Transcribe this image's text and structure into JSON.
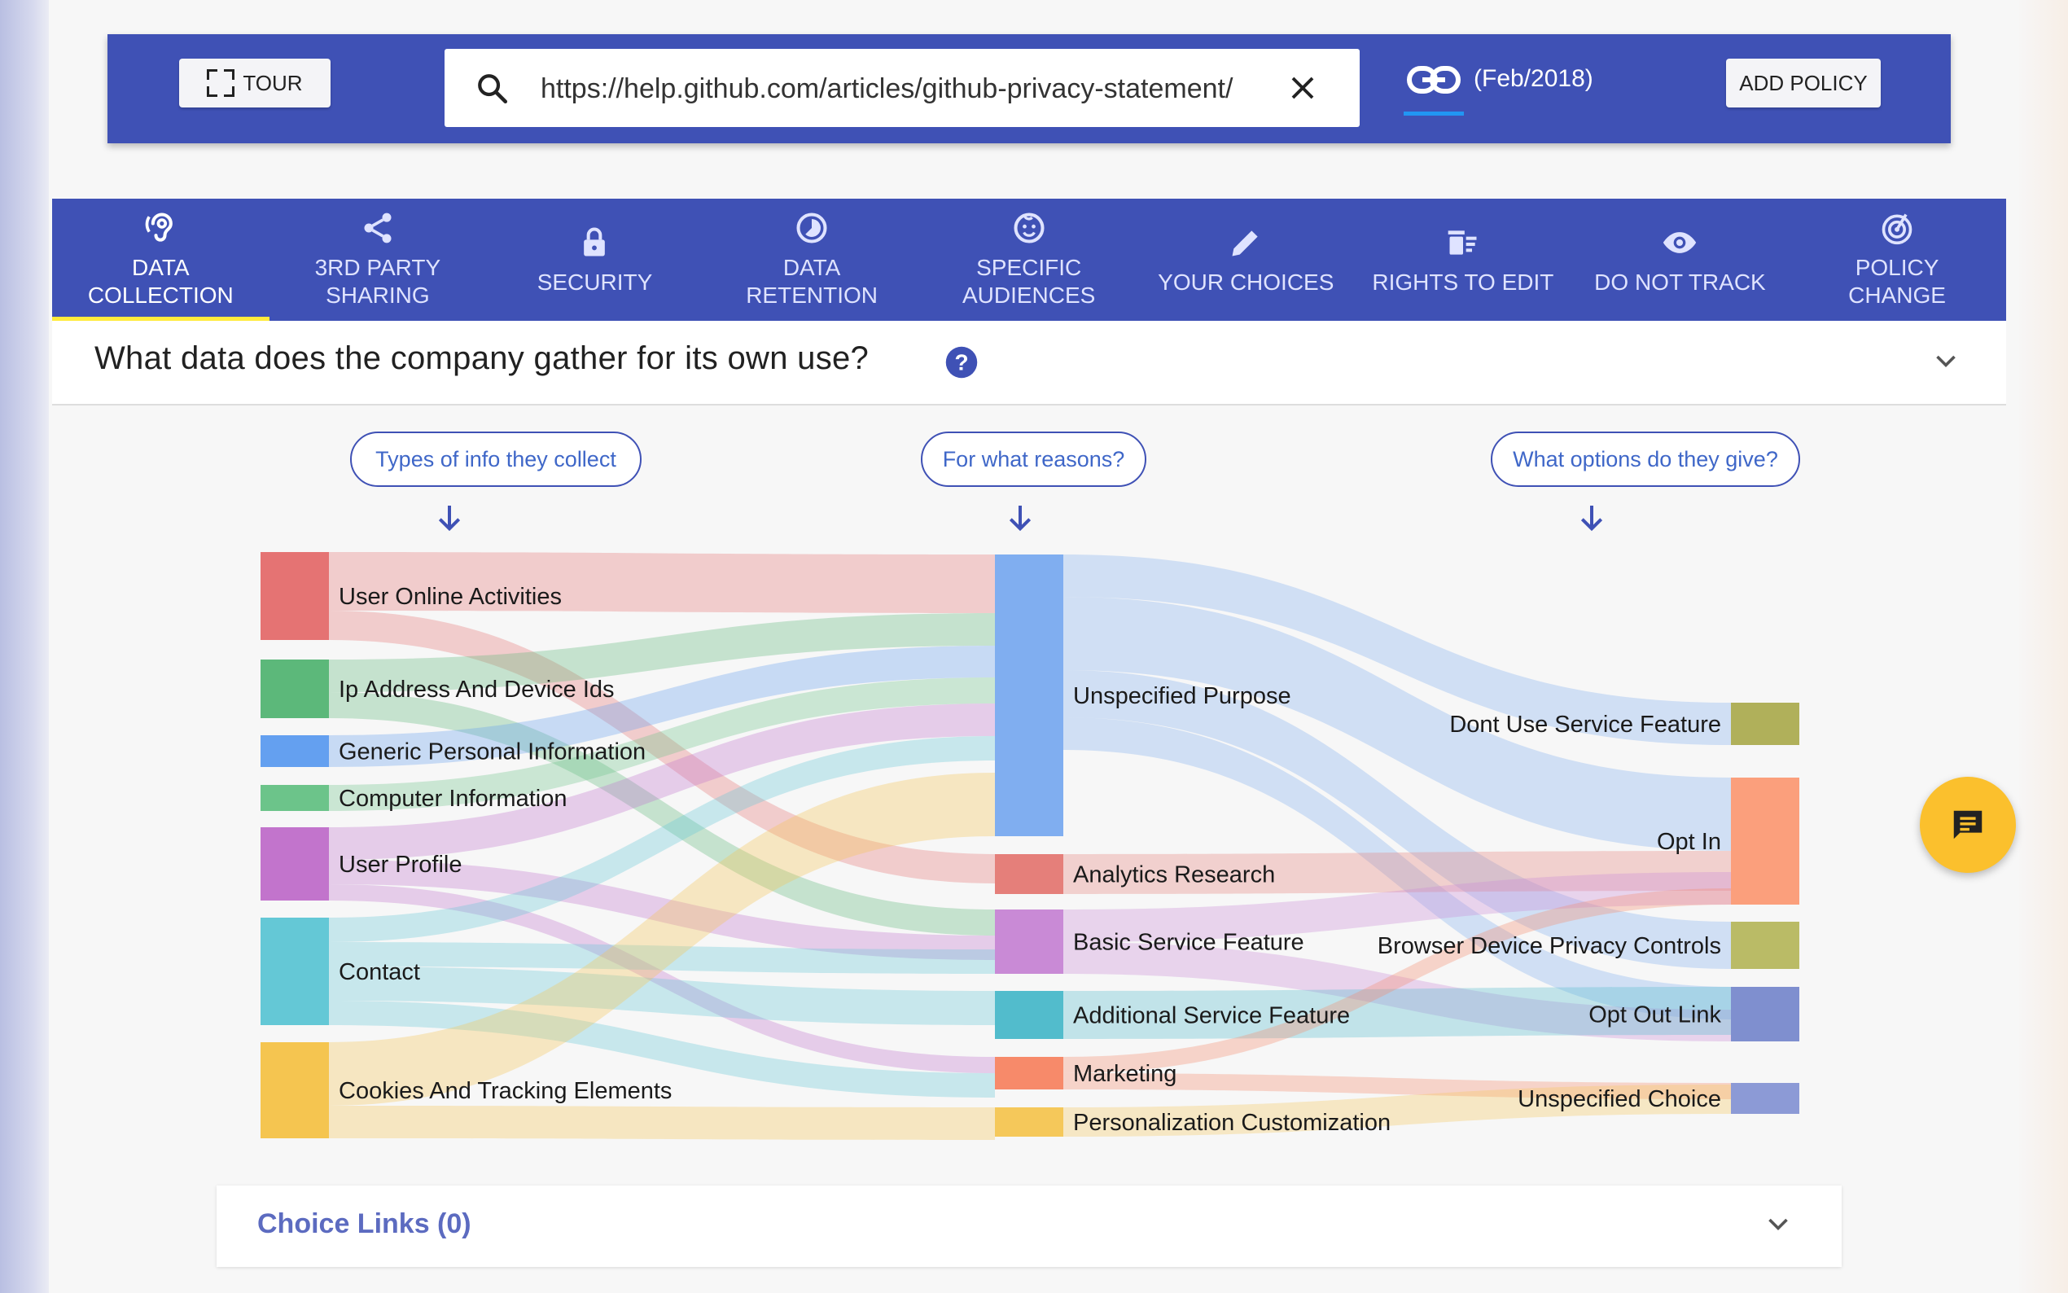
{
  "toolbar": {
    "tour_label": "TOUR",
    "search_value": "https://help.github.com/articles/github-privacy-statement/",
    "policy_date": "(Feb/2018)",
    "add_policy_label": "ADD POLICY"
  },
  "tabs": [
    {
      "label": "DATA\nCOLLECTION",
      "icon": "ear-icon",
      "active": true
    },
    {
      "label": "3RD PARTY\nSHARING",
      "icon": "share-icon"
    },
    {
      "label": "SECURITY",
      "icon": "lock-icon"
    },
    {
      "label": "DATA\nRETENTION",
      "icon": "timelapse-icon"
    },
    {
      "label": "SPECIFIC\nAUDIENCES",
      "icon": "child-face-icon"
    },
    {
      "label": "YOUR CHOICES",
      "icon": "pencil-icon"
    },
    {
      "label": "RIGHTS TO EDIT",
      "icon": "delete-sweep-icon"
    },
    {
      "label": "DO NOT TRACK",
      "icon": "eye-icon"
    },
    {
      "label": "POLICY\nCHANGE",
      "icon": "target-icon"
    }
  ],
  "question": {
    "text": "What data does the company gather for its own use?"
  },
  "columns": {
    "info": "Types of info they collect",
    "reasons": "For what reasons?",
    "options": "What options do they give?"
  },
  "sankey": {
    "info_nodes": [
      {
        "label": "User Online Activities",
        "color": "#e57373"
      },
      {
        "label": "Ip Address And Device Ids",
        "color": "#5cb87a"
      },
      {
        "label": "Generic Personal Information",
        "color": "#64a0f0"
      },
      {
        "label": "Computer Information",
        "color": "#6cc48a"
      },
      {
        "label": "User Profile",
        "color": "#c274cc"
      },
      {
        "label": "Contact",
        "color": "#64c8d6"
      },
      {
        "label": "Cookies And Tracking Elements",
        "color": "#f5c550"
      }
    ],
    "purpose_nodes": [
      {
        "label": "Unspecified Purpose",
        "color": "#80aef0"
      },
      {
        "label": "Analytics Research",
        "color": "#e57f7a"
      },
      {
        "label": "Basic Service Feature",
        "color": "#c98ad6"
      },
      {
        "label": "Additional Service Feature",
        "color": "#52bccc"
      },
      {
        "label": "Marketing",
        "color": "#f78a6a"
      },
      {
        "label": "Personalization Customization",
        "color": "#f5c85a"
      }
    ],
    "choice_nodes": [
      {
        "label": "Dont Use Service Feature",
        "color": "#b0b05a"
      },
      {
        "label": "Opt In",
        "color": "#fb9f7c"
      },
      {
        "label": "Browser Device Privacy Controls",
        "color": "#babb66"
      },
      {
        "label": "Opt Out Link",
        "color": "#7f8fcf"
      },
      {
        "label": "Unspecified Choice",
        "color": "#8c9ad6"
      }
    ]
  },
  "choice_links": {
    "title": "Choice Links (0)"
  }
}
